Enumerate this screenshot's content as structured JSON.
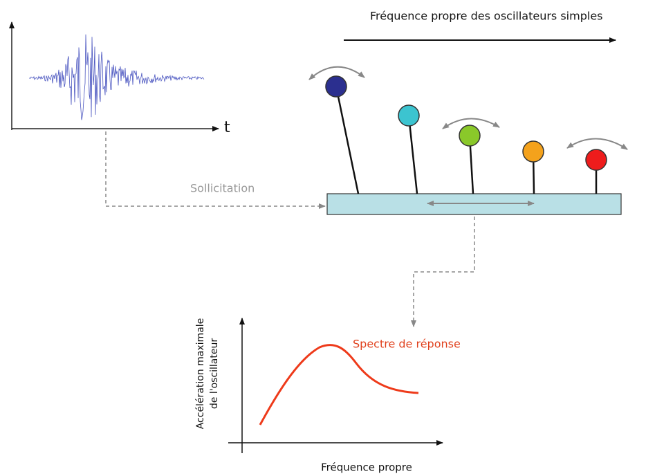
{
  "header": {
    "title": "Fréquence propre des oscillateurs simples"
  },
  "signal": {
    "axis_label": "t"
  },
  "labels": {
    "input": "Sollicitation",
    "output": "Spectre de réponse"
  },
  "response_chart": {
    "y_label_line1": "Accélération maximale",
    "y_label_line2": "de l'oscillateur",
    "x_label": "Fréquence propre"
  }
}
